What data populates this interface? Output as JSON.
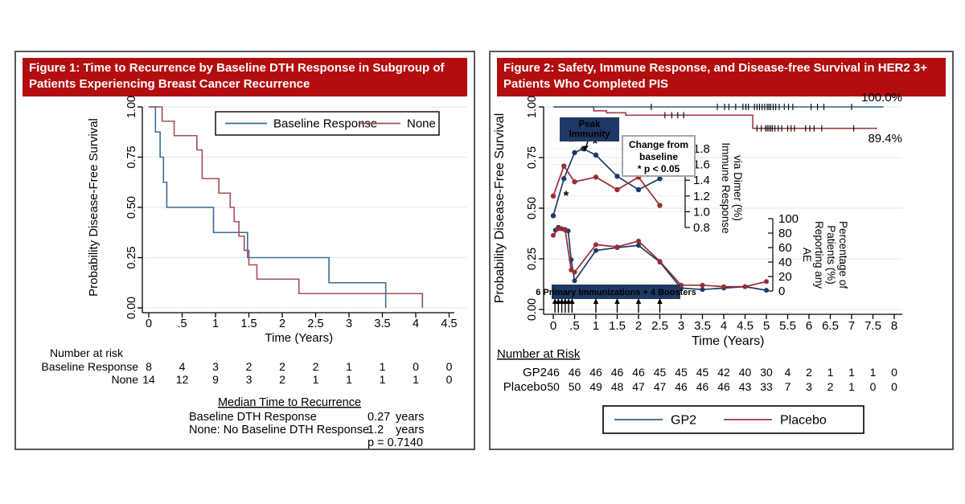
{
  "colors": {
    "banner_red": "#b20e10",
    "panel_border": "#595959",
    "grid": "#dde7f1",
    "axis": "#000000",
    "km_blue": "#3d6b96",
    "km_red": "#a24f57",
    "surv_blue": "#31608d",
    "surv_red": "#9f3a42",
    "marker_navy": "#1f3a68",
    "marker_red": "#9c2b33",
    "navy_box": "#1f3864",
    "note_border": "#a6a6a6",
    "note_text": "#595959"
  },
  "figure1": {
    "title": "Figure 1: Time to Recurrence by Baseline DTH Response in Subgroup of Patients Experiencing Breast Cancer Recurrence"
  },
  "figure2": {
    "title": "Figure 2: Safety, Immune Response, and Disease-free Survival in HER2 3+ Patients Who Completed PIS"
  },
  "chart_data": [
    {
      "type": "line",
      "subtype": "kaplan-meier-step",
      "title": "",
      "xlabel": "Time (Years)",
      "ylabel": "Probability Disease-Free Survival",
      "xlim": [
        0,
        4.5
      ],
      "ylim": [
        0,
        1
      ],
      "grid": true,
      "xtick_labels": [
        "0",
        ".5",
        "1",
        "1.5",
        "2",
        "2.5",
        "3",
        "3.5",
        "4",
        "4.5"
      ],
      "xticks": [
        0,
        0.5,
        1,
        1.5,
        2,
        2.5,
        3,
        3.5,
        4,
        4.5
      ],
      "ytick_labels": [
        "0.00",
        "0.25",
        "0.50",
        "0.75",
        "1.00"
      ],
      "yticks": [
        0,
        0.25,
        0.5,
        0.75,
        1
      ],
      "legend": {
        "position": "top-inside",
        "entries": [
          {
            "label": "Baseline Response",
            "color": "#3d6b96"
          },
          {
            "label": "None",
            "color": "#a24f57"
          }
        ]
      },
      "series": [
        {
          "name": "Baseline Response",
          "color": "#3d6b96",
          "step": true,
          "points": [
            [
              0,
              1
            ],
            [
              0.1,
              0.875
            ],
            [
              0.17,
              0.75
            ],
            [
              0.22,
              0.625
            ],
            [
              0.27,
              0.5
            ],
            [
              0.97,
              0.375
            ],
            [
              1.48,
              0.25
            ],
            [
              2.7,
              0.125
            ],
            [
              3.55,
              0
            ]
          ]
        },
        {
          "name": "None",
          "color": "#a24f57",
          "step": true,
          "points": [
            [
              0,
              1
            ],
            [
              0.2,
              0.929
            ],
            [
              0.38,
              0.857
            ],
            [
              0.72,
              0.786
            ],
            [
              0.8,
              0.643
            ],
            [
              1.05,
              0.571
            ],
            [
              1.22,
              0.5
            ],
            [
              1.28,
              0.429
            ],
            [
              1.35,
              0.357
            ],
            [
              1.43,
              0.286
            ],
            [
              1.5,
              0.214
            ],
            [
              1.62,
              0.143
            ],
            [
              2.25,
              0.071
            ],
            [
              4.1,
              0
            ]
          ]
        }
      ],
      "risk_table": {
        "header": "Number at risk",
        "rows": [
          {
            "label": "Baseline Response",
            "values": [
              "8",
              "4",
              "3",
              "2",
              "2",
              "2",
              "1",
              "1",
              "0",
              "0"
            ]
          },
          {
            "label": "None",
            "values": [
              "14",
              "12",
              "9",
              "3",
              "2",
              "1",
              "1",
              "1",
              "1",
              "0"
            ]
          }
        ]
      },
      "median_block": {
        "title": "Median Time to Recurrence",
        "rows": [
          {
            "label": "Baseline DTH Response",
            "value": "0.27",
            "unit": "years"
          },
          {
            "label": "None: No Baseline DTH Response",
            "value": "1.2",
            "unit": "years"
          }
        ],
        "pvalue": "p = 0.7140"
      }
    },
    {
      "type": "line",
      "subtype": "kaplan-meier-with-insets",
      "title": "",
      "xlabel": "Time (Years)",
      "ylabel": "Probability Disease-Free Survival",
      "xlim": [
        0,
        8
      ],
      "ylim": [
        0,
        1
      ],
      "grid": true,
      "xtick_labels": [
        "0",
        ".5",
        "1",
        "1.5",
        "2",
        "2.5",
        "3",
        "3.5",
        "4",
        "4.5",
        "5",
        "5.5",
        "6",
        "6.5",
        "7",
        "7.5",
        "8"
      ],
      "xticks": [
        0,
        0.5,
        1,
        1.5,
        2,
        2.5,
        3,
        3.5,
        4,
        4.5,
        5,
        5.5,
        6,
        6.5,
        7,
        7.5,
        8
      ],
      "ytick_labels": [
        "0.00",
        "0.25",
        "0.50",
        "0.75",
        "1.00"
      ],
      "yticks": [
        0,
        0.25,
        0.5,
        0.75,
        1
      ],
      "survival": {
        "blue": {
          "name": "GP2",
          "color": "#31608d",
          "points": [
            [
              0,
              1
            ],
            [
              7.75,
              1
            ]
          ],
          "end_label": "100.0%",
          "censor_ticks": [
            2.3,
            3.85,
            4.02,
            4.12,
            4.28,
            4.45,
            4.52,
            4.58,
            4.72,
            4.78,
            4.84,
            4.9,
            4.96,
            5.02,
            5.06,
            5.1,
            5.16,
            5.22,
            5.3,
            5.42,
            5.52,
            5.62,
            6.05,
            6.2,
            6.35,
            7.0
          ]
        },
        "red": {
          "name": "Placebo",
          "color": "#9f3a42",
          "points": [
            [
              0,
              1
            ],
            [
              0.95,
              0.981
            ],
            [
              1.25,
              0.971
            ],
            [
              1.7,
              0.959
            ],
            [
              4.68,
              0.894
            ],
            [
              7.6,
              0.894
            ]
          ],
          "end_label": "89.4%",
          "censor_ticks_mid": [
            2.62,
            2.78,
            2.92,
            3.06
          ],
          "censor_ticks_low": [
            4.78,
            4.88,
            4.98,
            5.02,
            5.06,
            5.1,
            5.14,
            5.2,
            5.28,
            5.36,
            5.5,
            5.58,
            5.66,
            5.92,
            6.02,
            6.12,
            6.3,
            7.05
          ]
        }
      },
      "immune_inset": {
        "ylabel_lines": [
          "Immune Response",
          "via Dimer (%)"
        ],
        "ytick_labels": [
          "1.8",
          "1.6",
          "1.4",
          "1.2",
          "1.0",
          "0.8"
        ],
        "yticks": [
          1.8,
          1.6,
          1.4,
          1.2,
          1.0,
          0.8
        ],
        "series": [
          {
            "name": "GP2",
            "color": "#1f3a68",
            "points": [
              [
                0,
                0.95
              ],
              [
                0.25,
                1.42
              ],
              [
                0.5,
                1.75
              ],
              [
                0.7,
                1.8
              ],
              [
                1,
                1.72
              ],
              [
                1.5,
                1.45
              ],
              [
                2,
                1.28
              ],
              [
                2.5,
                1.42
              ]
            ]
          },
          {
            "name": "Placebo",
            "color": "#9c2b33",
            "points": [
              [
                0,
                1.2
              ],
              [
                0.25,
                1.58
              ],
              [
                0.5,
                1.38
              ],
              [
                1,
                1.44
              ],
              [
                1.5,
                1.28
              ],
              [
                2,
                1.44
              ],
              [
                2.5,
                1.08
              ]
            ]
          }
        ],
        "asterisks": [
          {
            "x": 0.42,
            "y": 1.88
          },
          {
            "x": 0.98,
            "y": 1.86
          },
          {
            "x": 0.3,
            "y": 1.2
          }
        ],
        "peak_box_lines": [
          "Peak",
          "Immunity"
        ],
        "note_box_lines": [
          "Change from",
          "baseline",
          "* p < 0.05"
        ]
      },
      "ae_inset": {
        "ylabel_lines": [
          "Percentage of",
          "Patients (%)",
          "Reporting any",
          "AE"
        ],
        "ytick_labels": [
          "100",
          "80",
          "60",
          "40",
          "20",
          "0"
        ],
        "yticks": [
          100,
          80,
          60,
          40,
          20,
          0
        ],
        "series": [
          {
            "name": "GP2",
            "color": "#1f3a68",
            "points": [
              [
                0.05,
                84
              ],
              [
                0.12,
                88
              ],
              [
                0.2,
                86
              ],
              [
                0.28,
                85
              ],
              [
                0.35,
                83
              ],
              [
                0.42,
                43
              ],
              [
                0.5,
                14
              ],
              [
                1,
                56
              ],
              [
                1.5,
                60
              ],
              [
                2,
                63
              ],
              [
                2.5,
                40
              ],
              [
                3,
                4
              ],
              [
                3.5,
                2
              ],
              [
                4,
                4
              ],
              [
                4.5,
                6
              ],
              [
                5,
                1
              ]
            ]
          },
          {
            "name": "Placebo",
            "color": "#9c2b33",
            "points": [
              [
                0,
                77
              ],
              [
                0.12,
                86
              ],
              [
                0.2,
                86
              ],
              [
                0.28,
                84
              ],
              [
                0.42,
                29
              ],
              [
                0.5,
                26
              ],
              [
                1,
                64
              ],
              [
                1.5,
                61
              ],
              [
                2,
                69
              ],
              [
                2.5,
                41
              ],
              [
                3,
                8
              ],
              [
                3.5,
                8
              ],
              [
                4,
                6
              ],
              [
                4.5,
                6
              ],
              [
                5,
                13
              ]
            ]
          }
        ],
        "immunization_box": "6 Primary Immunizations + 4 Boosters",
        "immunization_arrows": [
          0.04,
          0.12,
          0.2,
          0.28,
          0.36,
          0.44,
          1.0,
          1.5,
          2.0,
          2.5
        ]
      },
      "risk_table": {
        "header": "Number at Risk",
        "rows": [
          {
            "label": "GP2",
            "values": [
              "46",
              "46",
              "46",
              "46",
              "46",
              "45",
              "45",
              "45",
              "42",
              "40",
              "30",
              "4",
              "2",
              "1",
              "1",
              "1",
              "0"
            ]
          },
          {
            "label": "Placebo",
            "values": [
              "50",
              "50",
              "49",
              "48",
              "47",
              "47",
              "46",
              "46",
              "46",
              "43",
              "33",
              "7",
              "3",
              "2",
              "1",
              "0",
              "0"
            ]
          }
        ]
      },
      "legend": {
        "position": "bottom-box",
        "entries": [
          {
            "label": "GP2",
            "color": "#31608d"
          },
          {
            "label": "Placebo",
            "color": "#9f3a42"
          }
        ]
      }
    }
  ]
}
